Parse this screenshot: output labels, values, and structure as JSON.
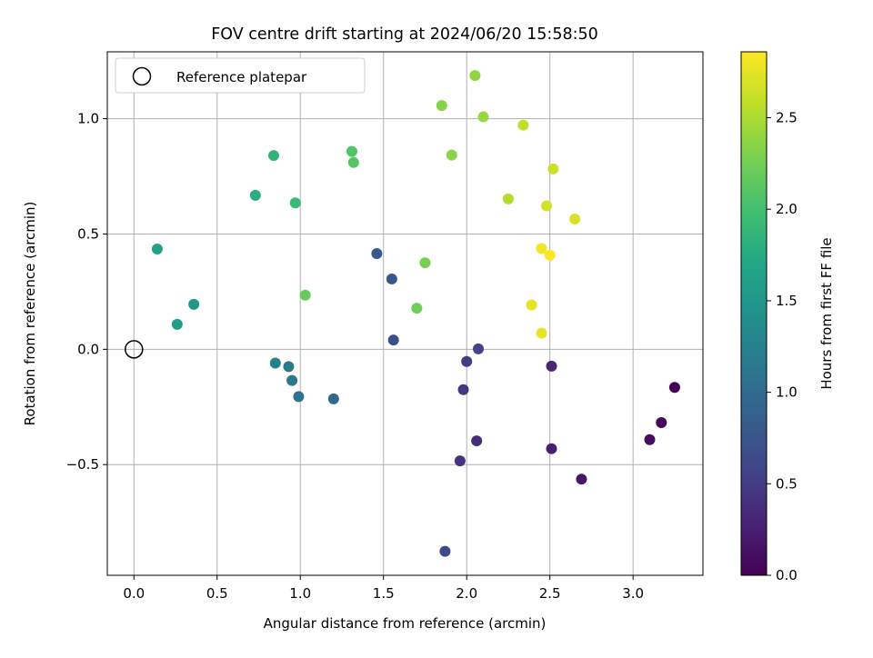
{
  "chart_data": {
    "type": "scatter",
    "title": "FOV centre drift starting at 2024/06/20 15:58:50",
    "xlabel": "Angular distance from reference (arcmin)",
    "ylabel": "Rotation from reference (arcmin)",
    "xlim": [
      -0.16,
      3.42
    ],
    "ylim": [
      -0.98,
      1.29
    ],
    "x_ticks": [
      0.0,
      0.5,
      1.0,
      1.5,
      2.0,
      2.5,
      3.0
    ],
    "x_tick_labels": [
      "0.0",
      "0.5",
      "1.0",
      "1.5",
      "2.0",
      "2.5",
      "3.0"
    ],
    "y_ticks": [
      -0.5,
      0.0,
      0.5,
      1.0
    ],
    "y_tick_labels": [
      "−0.5",
      "0.0",
      "0.5",
      "1.0"
    ],
    "grid": true,
    "legend": {
      "placement": "upper-left",
      "entries": [
        "Reference platepar"
      ]
    },
    "reference_point": {
      "x": 0.0,
      "y": 0.0
    },
    "colorbar": {
      "label": "Hours from first FF file",
      "range": [
        0.0,
        2.86
      ],
      "ticks": [
        0.0,
        0.5,
        1.0,
        1.5,
        2.0,
        2.5
      ],
      "tick_labels": [
        "0.0",
        "0.5",
        "1.0",
        "1.5",
        "2.0",
        "2.5"
      ],
      "colormap": "viridis"
    },
    "points": [
      {
        "x": 3.25,
        "y": -0.165,
        "c": 0.0
      },
      {
        "x": 3.17,
        "y": -0.318,
        "c": 0.06
      },
      {
        "x": 3.1,
        "y": -0.392,
        "c": 0.11
      },
      {
        "x": 2.69,
        "y": -0.563,
        "c": 0.18
      },
      {
        "x": 2.51,
        "y": -0.431,
        "c": 0.25
      },
      {
        "x": 2.51,
        "y": -0.073,
        "c": 0.3
      },
      {
        "x": 2.06,
        "y": -0.397,
        "c": 0.37
      },
      {
        "x": 1.96,
        "y": -0.484,
        "c": 0.42
      },
      {
        "x": 1.98,
        "y": -0.175,
        "c": 0.47
      },
      {
        "x": 2.0,
        "y": -0.053,
        "c": 0.52
      },
      {
        "x": 2.07,
        "y": 0.002,
        "c": 0.57
      },
      {
        "x": 1.87,
        "y": -0.876,
        "c": 0.62
      },
      {
        "x": 1.56,
        "y": 0.04,
        "c": 0.69
      },
      {
        "x": 1.55,
        "y": 0.305,
        "c": 0.75
      },
      {
        "x": 1.46,
        "y": 0.415,
        "c": 0.8
      },
      {
        "x": 1.2,
        "y": -0.215,
        "c": 0.96
      },
      {
        "x": 0.99,
        "y": -0.205,
        "c": 1.07
      },
      {
        "x": 0.95,
        "y": -0.135,
        "c": 1.13
      },
      {
        "x": 0.93,
        "y": -0.075,
        "c": 1.18
      },
      {
        "x": 0.85,
        "y": -0.06,
        "c": 1.25
      },
      {
        "x": 0.36,
        "y": 0.195,
        "c": 1.52
      },
      {
        "x": 0.26,
        "y": 0.108,
        "c": 1.58
      },
      {
        "x": 0.14,
        "y": 0.435,
        "c": 1.63
      },
      {
        "x": 0.73,
        "y": 0.668,
        "c": 1.79
      },
      {
        "x": 0.84,
        "y": 0.84,
        "c": 1.87
      },
      {
        "x": 0.97,
        "y": 0.635,
        "c": 1.92
      },
      {
        "x": 1.31,
        "y": 0.858,
        "c": 2.07
      },
      {
        "x": 1.32,
        "y": 0.81,
        "c": 2.1
      },
      {
        "x": 1.03,
        "y": 0.235,
        "c": 2.18
      },
      {
        "x": 1.7,
        "y": 0.178,
        "c": 2.24
      },
      {
        "x": 1.75,
        "y": 0.375,
        "c": 2.28
      },
      {
        "x": 1.85,
        "y": 1.057,
        "c": 2.33
      },
      {
        "x": 1.91,
        "y": 0.842,
        "c": 2.35
      },
      {
        "x": 2.05,
        "y": 1.187,
        "c": 2.38
      },
      {
        "x": 2.1,
        "y": 1.008,
        "c": 2.41
      },
      {
        "x": 2.25,
        "y": 0.652,
        "c": 2.53
      },
      {
        "x": 2.34,
        "y": 0.972,
        "c": 2.59
      },
      {
        "x": 2.52,
        "y": 0.782,
        "c": 2.63
      },
      {
        "x": 2.48,
        "y": 0.622,
        "c": 2.67
      },
      {
        "x": 2.65,
        "y": 0.565,
        "c": 2.7
      },
      {
        "x": 2.39,
        "y": 0.192,
        "c": 2.75
      },
      {
        "x": 2.45,
        "y": 0.07,
        "c": 2.77
      },
      {
        "x": 2.45,
        "y": 0.437,
        "c": 2.81
      },
      {
        "x": 2.5,
        "y": 0.408,
        "c": 2.85
      }
    ]
  }
}
